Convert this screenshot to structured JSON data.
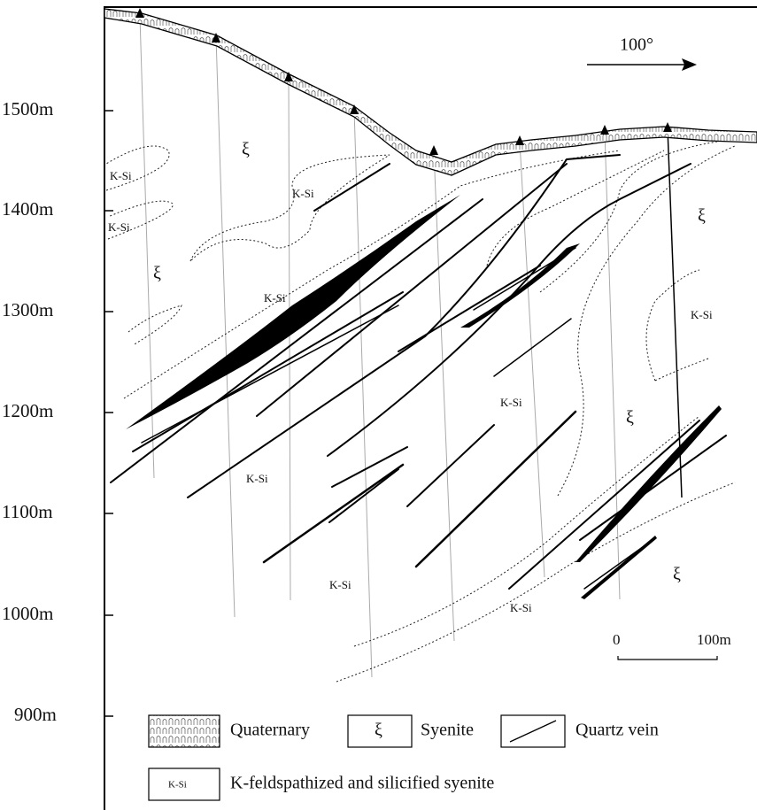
{
  "elevation_labels": [
    "1500m",
    "1400m",
    "1300m",
    "1200m",
    "1100m",
    "1000m",
    "900m"
  ],
  "direction": "100°",
  "scale_bar": {
    "start": "0",
    "end": "100m"
  },
  "map_labels": [
    "ξ",
    "K-Si",
    "K-Si",
    "K-Si",
    "ξ",
    "K-Si",
    "ξ",
    "K-Si",
    "K-Si",
    "ξ",
    "K-Si",
    "K-Si",
    "K-Si",
    "ξ"
  ],
  "legend": {
    "quaternary": "Quaternary",
    "syenite_symbol": "ξ",
    "syenite": "Syenite",
    "quartz_vein": "Quartz vein",
    "ksi_symbol": "K-Si",
    "ksi": "K-feldspathized and silicified syenite"
  }
}
